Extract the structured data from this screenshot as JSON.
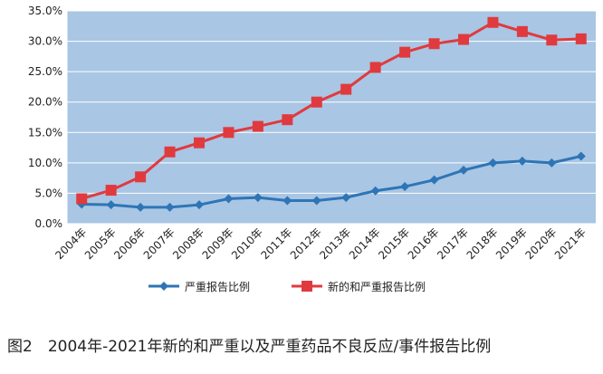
{
  "caption": "图2　2004年-2021年新的和严重以及严重药品不良反应/事件报告比例",
  "chart_data": {
    "type": "line",
    "title": "",
    "xlabel": "",
    "ylabel": "",
    "categories": [
      "2004年",
      "2005年",
      "2006年",
      "2007年",
      "2008年",
      "2009年",
      "2010年",
      "2011年",
      "2012年",
      "2013年",
      "2014年",
      "2015年",
      "2016年",
      "2017年",
      "2018年",
      "2019年",
      "2020年",
      "2021年"
    ],
    "y_ticks": [
      "0.0%",
      "5.0%",
      "10.0%",
      "15.0%",
      "20.0%",
      "25.0%",
      "30.0%",
      "35.0%"
    ],
    "ylim": [
      0,
      35
    ],
    "grid": true,
    "legend_position": "bottom",
    "plot_background": "#a9c6e4",
    "series": [
      {
        "name": "严重报告比例",
        "color": "#2e75b6",
        "marker": "diamond",
        "values": [
          3.2,
          3.1,
          2.7,
          2.7,
          3.1,
          4.1,
          4.3,
          3.8,
          3.8,
          4.3,
          5.4,
          6.1,
          7.2,
          8.8,
          10.0,
          10.3,
          10.0,
          11.1
        ]
      },
      {
        "name": "新的和严重报告比例",
        "color": "#e03a3e",
        "marker": "square",
        "values": [
          4.1,
          5.5,
          7.7,
          11.8,
          13.3,
          15.0,
          16.0,
          17.1,
          20.0,
          22.1,
          25.7,
          28.2,
          29.6,
          30.3,
          33.1,
          31.6,
          30.2,
          30.4
        ]
      }
    ]
  }
}
